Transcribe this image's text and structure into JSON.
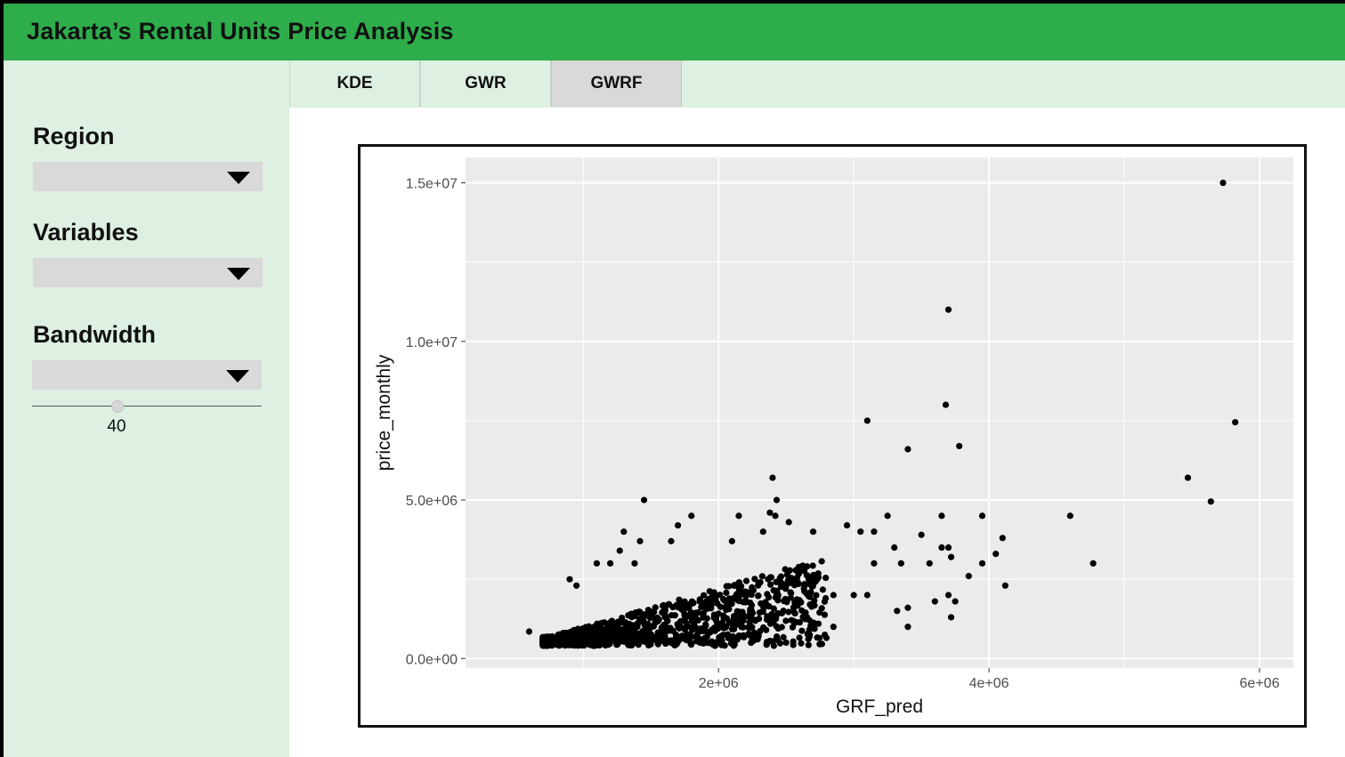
{
  "header": {
    "title": "Jakarta’s Rental Units Price Analysis"
  },
  "tabs": [
    {
      "label": "KDE",
      "active": false
    },
    {
      "label": "GWR",
      "active": false
    },
    {
      "label": "GWRF",
      "active": true
    }
  ],
  "sidebar": {
    "region": {
      "label": "Region",
      "value": ""
    },
    "variables": {
      "label": "Variables",
      "value": ""
    },
    "bandwidth": {
      "label": "Bandwidth",
      "value": "",
      "slider_value": "40"
    }
  },
  "colors": {
    "header": "#2ead4b",
    "sidebar": "#ddf0e1",
    "panel_bg": "#ebebeb",
    "grid": "#ffffff",
    "point": "#000000"
  },
  "chart_data": {
    "type": "scatter",
    "xlabel": "GRF_pred",
    "ylabel": "price_monthly",
    "xlim": [
      130000.0,
      6250000.0
    ],
    "ylim": [
      -300000.0,
      15800000.0
    ],
    "x_ticks": [
      2000000,
      4000000,
      6000000
    ],
    "x_tick_labels": [
      "2e+06",
      "4e+06",
      "6e+06"
    ],
    "y_ticks": [
      0,
      5000000,
      10000000,
      15000000
    ],
    "y_tick_labels": [
      "0.0e+00",
      "5.0e+06",
      "1.0e+07",
      "1.5e+07"
    ],
    "grid": true,
    "points": [
      [
        5730000,
        15000000
      ],
      [
        3700000,
        11000000
      ],
      [
        3680000,
        8000000
      ],
      [
        3100000,
        7500000
      ],
      [
        5820000,
        7450000
      ],
      [
        3780000,
        6700000
      ],
      [
        3400000,
        6600000
      ],
      [
        2400000,
        5700000
      ],
      [
        5470000,
        5700000
      ],
      [
        1450000,
        5000000
      ],
      [
        2430000,
        5000000
      ],
      [
        5640000,
        4950000
      ],
      [
        2380000,
        4600000
      ],
      [
        2420000,
        4500000
      ],
      [
        3250000,
        4500000
      ],
      [
        3650000,
        4500000
      ],
      [
        3950000,
        4500000
      ],
      [
        4600000,
        4500000
      ],
      [
        1800000,
        4500000
      ],
      [
        2150000,
        4500000
      ],
      [
        1700000,
        4200000
      ],
      [
        2520000,
        4300000
      ],
      [
        2950000,
        4200000
      ],
      [
        1300000,
        4000000
      ],
      [
        2330000,
        4000000
      ],
      [
        2700000,
        4000000
      ],
      [
        3050000,
        4000000
      ],
      [
        3150000,
        4000000
      ],
      [
        3500000,
        3900000
      ],
      [
        4100000,
        3800000
      ],
      [
        1420000,
        3700000
      ],
      [
        1650000,
        3700000
      ],
      [
        2100000,
        3700000
      ],
      [
        3300000,
        3500000
      ],
      [
        3650000,
        3500000
      ],
      [
        3700000,
        3500000
      ],
      [
        4050000,
        3300000
      ],
      [
        3720000,
        3200000
      ],
      [
        4770000,
        3000000
      ],
      [
        3350000,
        3000000
      ],
      [
        3560000,
        3000000
      ],
      [
        3150000,
        3000000
      ],
      [
        3950000,
        3000000
      ],
      [
        3850000,
        2600000
      ],
      [
        4120000,
        2300000
      ],
      [
        3000000,
        2000000
      ],
      [
        3100000,
        2000000
      ],
      [
        2850000,
        2000000
      ],
      [
        3700000,
        2000000
      ],
      [
        3600000,
        1800000
      ],
      [
        3750000,
        1800000
      ],
      [
        3320000,
        1500000
      ],
      [
        3400000,
        1600000
      ],
      [
        3720000,
        1300000
      ],
      [
        2850000,
        1000000
      ],
      [
        3400000,
        1000000
      ],
      [
        2500000,
        500000
      ],
      [
        2180000,
        700000
      ],
      [
        1580000,
        600000
      ],
      [
        600000,
        850000
      ],
      [
        900000,
        2500000
      ],
      [
        1100000,
        3000000
      ],
      [
        1200000,
        3000000
      ],
      [
        1380000,
        3000000
      ],
      [
        1270000,
        3400000
      ],
      [
        950000,
        2300000
      ],
      [
        850000,
        800000
      ],
      [
        900000,
        600000
      ],
      [
        1000000,
        700000
      ]
    ]
  }
}
